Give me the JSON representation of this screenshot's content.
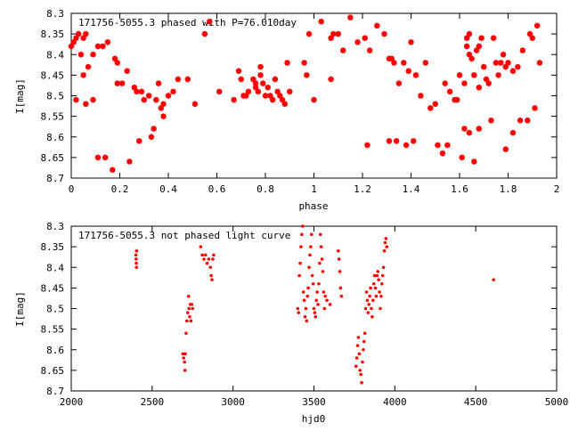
{
  "chart_data": [
    {
      "type": "scatter",
      "title": "171756-5055.3 phased with P=76.010day",
      "xlabel": "phase",
      "ylabel": "I[mag]",
      "xlim": [
        0,
        2
      ],
      "ylim": [
        8.3,
        8.7
      ],
      "y_inverted": true,
      "grid": false,
      "marker": "star",
      "color": "#ff0000",
      "xticks": [
        0,
        0.2,
        0.4,
        0.6,
        0.8,
        1,
        1.2,
        1.4,
        1.6,
        1.8,
        2
      ],
      "xtick_labels": [
        "0",
        "0.2",
        "0.4",
        "0.6",
        "0.8",
        "1",
        "1.2",
        "1.4",
        "1.6",
        "1.8",
        "2"
      ],
      "yticks": [
        8.3,
        8.35,
        8.4,
        8.45,
        8.5,
        8.55,
        8.6,
        8.65,
        8.7
      ],
      "ytick_labels": [
        "8.3",
        "8.35",
        "8.4",
        "8.45",
        "8.5",
        "8.55",
        "8.6",
        "8.65",
        "8.7"
      ],
      "points": [
        [
          0.0,
          8.38
        ],
        [
          0.01,
          8.37
        ],
        [
          0.02,
          8.36
        ],
        [
          0.03,
          8.35
        ],
        [
          0.05,
          8.36
        ],
        [
          0.06,
          8.35
        ],
        [
          0.04,
          8.4
        ],
        [
          0.05,
          8.45
        ],
        [
          0.07,
          8.43
        ],
        [
          0.09,
          8.4
        ],
        [
          0.11,
          8.38
        ],
        [
          0.13,
          8.38
        ],
        [
          0.15,
          8.37
        ],
        [
          0.02,
          8.51
        ],
        [
          0.06,
          8.52
        ],
        [
          0.09,
          8.51
        ],
        [
          0.11,
          8.65
        ],
        [
          0.14,
          8.65
        ],
        [
          0.17,
          8.68
        ],
        [
          0.18,
          8.41
        ],
        [
          0.19,
          8.42
        ],
        [
          0.19,
          8.47
        ],
        [
          0.21,
          8.47
        ],
        [
          0.23,
          8.44
        ],
        [
          0.24,
          8.66
        ],
        [
          0.26,
          8.48
        ],
        [
          0.27,
          8.49
        ],
        [
          0.28,
          8.61
        ],
        [
          0.29,
          8.49
        ],
        [
          0.3,
          8.51
        ],
        [
          0.32,
          8.5
        ],
        [
          0.33,
          8.6
        ],
        [
          0.34,
          8.58
        ],
        [
          0.35,
          8.51
        ],
        [
          0.36,
          8.47
        ],
        [
          0.37,
          8.53
        ],
        [
          0.38,
          8.52
        ],
        [
          0.38,
          8.55
        ],
        [
          0.4,
          8.5
        ],
        [
          0.42,
          8.49
        ],
        [
          0.44,
          8.46
        ],
        [
          0.48,
          8.46
        ],
        [
          0.51,
          8.52
        ],
        [
          0.55,
          8.35
        ],
        [
          0.57,
          8.32
        ],
        [
          0.61,
          8.49
        ],
        [
          0.67,
          8.51
        ],
        [
          0.69,
          8.44
        ],
        [
          0.7,
          8.46
        ],
        [
          0.71,
          8.5
        ],
        [
          0.72,
          8.5
        ],
        [
          0.73,
          8.49
        ],
        [
          0.75,
          8.46
        ],
        [
          0.76,
          8.47
        ],
        [
          0.76,
          8.48
        ],
        [
          0.77,
          8.49
        ],
        [
          0.78,
          8.43
        ],
        [
          0.78,
          8.45
        ],
        [
          0.79,
          8.47
        ],
        [
          0.8,
          8.5
        ],
        [
          0.81,
          8.48
        ],
        [
          0.82,
          8.5
        ],
        [
          0.83,
          8.51
        ],
        [
          0.84,
          8.46
        ],
        [
          0.85,
          8.49
        ],
        [
          0.86,
          8.5
        ],
        [
          0.87,
          8.51
        ],
        [
          0.88,
          8.52
        ],
        [
          0.89,
          8.42
        ],
        [
          0.9,
          8.49
        ],
        [
          0.96,
          8.42
        ],
        [
          0.97,
          8.45
        ],
        [
          0.98,
          8.35
        ],
        [
          1.0,
          8.51
        ],
        [
          1.03,
          8.32
        ],
        [
          1.07,
          8.46
        ],
        [
          1.07,
          8.36
        ],
        [
          1.08,
          8.35
        ],
        [
          1.1,
          8.35
        ],
        [
          1.12,
          8.39
        ],
        [
          1.15,
          8.31
        ],
        [
          1.18,
          8.37
        ],
        [
          1.21,
          8.36
        ],
        [
          1.22,
          8.62
        ],
        [
          1.23,
          8.39
        ],
        [
          1.26,
          8.33
        ],
        [
          1.29,
          8.35
        ],
        [
          1.31,
          8.41
        ],
        [
          1.32,
          8.41
        ],
        [
          1.31,
          8.61
        ],
        [
          1.33,
          8.42
        ],
        [
          1.34,
          8.61
        ],
        [
          1.35,
          8.47
        ],
        [
          1.37,
          8.42
        ],
        [
          1.38,
          8.62
        ],
        [
          1.39,
          8.44
        ],
        [
          1.4,
          8.37
        ],
        [
          1.41,
          8.61
        ],
        [
          1.42,
          8.45
        ],
        [
          1.44,
          8.5
        ],
        [
          1.46,
          8.42
        ],
        [
          1.48,
          8.53
        ],
        [
          1.5,
          8.52
        ],
        [
          1.51,
          8.62
        ],
        [
          1.53,
          8.64
        ],
        [
          1.54,
          8.47
        ],
        [
          1.55,
          8.62
        ],
        [
          1.56,
          8.49
        ],
        [
          1.58,
          8.51
        ],
        [
          1.59,
          8.51
        ],
        [
          1.6,
          8.45
        ],
        [
          1.61,
          8.65
        ],
        [
          1.62,
          8.58
        ],
        [
          1.63,
          8.36
        ],
        [
          1.63,
          8.38
        ],
        [
          1.64,
          8.4
        ],
        [
          1.64,
          8.35
        ],
        [
          1.65,
          8.41
        ],
        [
          1.66,
          8.45
        ],
        [
          1.67,
          8.39
        ],
        [
          1.68,
          8.38
        ],
        [
          1.68,
          8.48
        ],
        [
          1.68,
          8.58
        ],
        [
          1.69,
          8.36
        ],
        [
          1.7,
          8.43
        ],
        [
          1.71,
          8.46
        ],
        [
          1.72,
          8.47
        ],
        [
          1.73,
          8.56
        ],
        [
          1.74,
          8.36
        ],
        [
          1.75,
          8.42
        ],
        [
          1.76,
          8.45
        ],
        [
          1.77,
          8.42
        ],
        [
          1.78,
          8.4
        ],
        [
          1.79,
          8.43
        ],
        [
          1.8,
          8.42
        ],
        [
          1.82,
          8.44
        ],
        [
          1.84,
          8.43
        ],
        [
          1.85,
          8.56
        ],
        [
          1.86,
          8.39
        ],
        [
          1.89,
          8.35
        ],
        [
          1.9,
          8.36
        ],
        [
          1.91,
          8.53
        ],
        [
          1.92,
          8.33
        ],
        [
          1.93,
          8.42
        ],
        [
          1.64,
          8.59
        ],
        [
          1.62,
          8.47
        ],
        [
          1.66,
          8.66
        ],
        [
          1.79,
          8.63
        ],
        [
          1.82,
          8.59
        ],
        [
          1.88,
          8.56
        ]
      ]
    },
    {
      "type": "scatter",
      "title": "171756-5055.3 not phased light curve",
      "xlabel": "hjd0",
      "ylabel": "I[mag]",
      "xlim": [
        2000,
        5000
      ],
      "ylim": [
        8.3,
        8.7
      ],
      "y_inverted": true,
      "grid": false,
      "marker": "dot",
      "color": "#ff0000",
      "xticks": [
        2000,
        2500,
        3000,
        3500,
        4000,
        4500,
        5000
      ],
      "xtick_labels": [
        "2000",
        "2500",
        "3000",
        "3500",
        "4000",
        "4500",
        "5000"
      ],
      "yticks": [
        8.3,
        8.35,
        8.4,
        8.45,
        8.5,
        8.55,
        8.6,
        8.65,
        8.7
      ],
      "ytick_labels": [
        "8.3",
        "8.35",
        "8.4",
        "8.45",
        "8.5",
        "8.55",
        "8.6",
        "8.65",
        "8.7"
      ],
      "points": [
        [
          2400,
          8.37
        ],
        [
          2401,
          8.38
        ],
        [
          2402,
          8.39
        ],
        [
          2403,
          8.4
        ],
        [
          2404,
          8.36
        ],
        [
          2690,
          8.61
        ],
        [
          2695,
          8.62
        ],
        [
          2700,
          8.63
        ],
        [
          2703,
          8.65
        ],
        [
          2705,
          8.61
        ],
        [
          2710,
          8.56
        ],
        [
          2715,
          8.53
        ],
        [
          2720,
          8.51
        ],
        [
          2725,
          8.47
        ],
        [
          2728,
          8.5
        ],
        [
          2732,
          8.52
        ],
        [
          2736,
          8.49
        ],
        [
          2740,
          8.53
        ],
        [
          2745,
          8.49
        ],
        [
          2750,
          8.5
        ],
        [
          2800,
          8.35
        ],
        [
          2810,
          8.37
        ],
        [
          2820,
          8.38
        ],
        [
          2830,
          8.37
        ],
        [
          2840,
          8.39
        ],
        [
          2850,
          8.38
        ],
        [
          2860,
          8.4
        ],
        [
          2865,
          8.42
        ],
        [
          2870,
          8.43
        ],
        [
          2875,
          8.38
        ],
        [
          2880,
          8.37
        ],
        [
          3400,
          8.5
        ],
        [
          3405,
          8.51
        ],
        [
          3410,
          8.42
        ],
        [
          3415,
          8.39
        ],
        [
          3420,
          8.35
        ],
        [
          3425,
          8.32
        ],
        [
          3430,
          8.3
        ],
        [
          3435,
          8.46
        ],
        [
          3440,
          8.48
        ],
        [
          3445,
          8.52
        ],
        [
          3450,
          8.5
        ],
        [
          3455,
          8.53
        ],
        [
          3460,
          8.47
        ],
        [
          3465,
          8.45
        ],
        [
          3470,
          8.4
        ],
        [
          3475,
          8.37
        ],
        [
          3480,
          8.35
        ],
        [
          3485,
          8.32
        ],
        [
          3490,
          8.42
        ],
        [
          3495,
          8.44
        ],
        [
          3500,
          8.5
        ],
        [
          3505,
          8.51
        ],
        [
          3510,
          8.52
        ],
        [
          3515,
          8.48
        ],
        [
          3520,
          8.46
        ],
        [
          3525,
          8.49
        ],
        [
          3530,
          8.44
        ],
        [
          3535,
          8.39
        ],
        [
          3540,
          8.32
        ],
        [
          3545,
          8.35
        ],
        [
          3550,
          8.38
        ],
        [
          3555,
          8.41
        ],
        [
          3560,
          8.46
        ],
        [
          3565,
          8.5
        ],
        [
          3570,
          8.47
        ],
        [
          3580,
          8.48
        ],
        [
          3600,
          8.49
        ],
        [
          3650,
          8.36
        ],
        [
          3655,
          8.38
        ],
        [
          3660,
          8.41
        ],
        [
          3665,
          8.45
        ],
        [
          3670,
          8.47
        ],
        [
          3760,
          8.64
        ],
        [
          3765,
          8.62
        ],
        [
          3770,
          8.59
        ],
        [
          3775,
          8.57
        ],
        [
          3780,
          8.61
        ],
        [
          3785,
          8.65
        ],
        [
          3790,
          8.66
        ],
        [
          3795,
          8.68
        ],
        [
          3800,
          8.63
        ],
        [
          3805,
          8.6
        ],
        [
          3810,
          8.58
        ],
        [
          3815,
          8.56
        ],
        [
          3820,
          8.5
        ],
        [
          3825,
          8.46
        ],
        [
          3830,
          8.48
        ],
        [
          3835,
          8.51
        ],
        [
          3840,
          8.49
        ],
        [
          3845,
          8.47
        ],
        [
          3850,
          8.45
        ],
        [
          3855,
          8.5
        ],
        [
          3860,
          8.52
        ],
        [
          3865,
          8.48
        ],
        [
          3870,
          8.44
        ],
        [
          3875,
          8.42
        ],
        [
          3880,
          8.45
        ],
        [
          3885,
          8.47
        ],
        [
          3890,
          8.42
        ],
        [
          3895,
          8.41
        ],
        [
          3900,
          8.43
        ],
        [
          3905,
          8.46
        ],
        [
          3910,
          8.5
        ],
        [
          3915,
          8.47
        ],
        [
          3920,
          8.44
        ],
        [
          3925,
          8.42
        ],
        [
          3930,
          8.4
        ],
        [
          3935,
          8.36
        ],
        [
          3940,
          8.34
        ],
        [
          3945,
          8.33
        ],
        [
          3950,
          8.35
        ],
        [
          4610,
          8.43
        ]
      ]
    }
  ]
}
